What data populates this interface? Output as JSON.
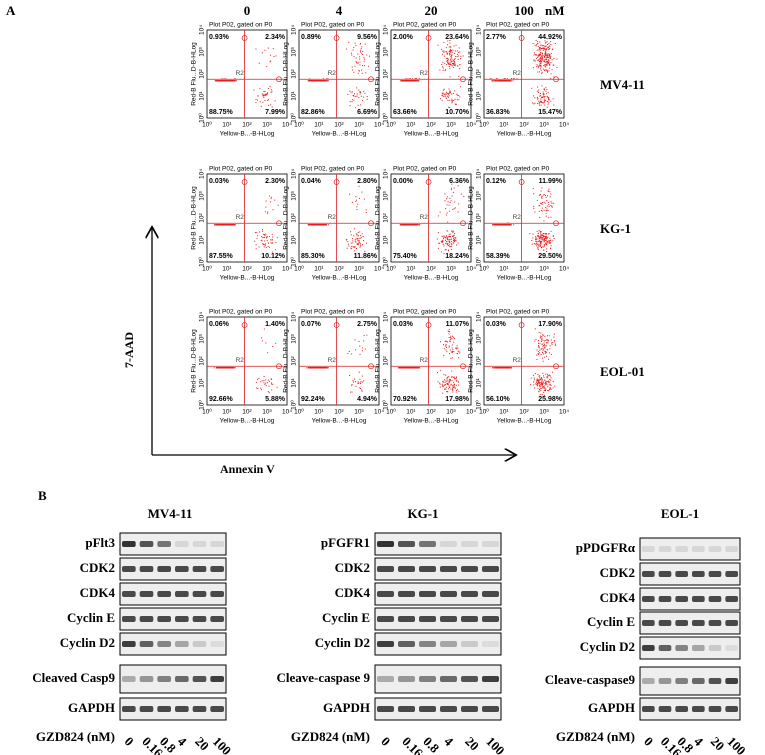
{
  "panel_a": {
    "label": "A",
    "concentrations": [
      "0",
      "4",
      "20",
      "100"
    ],
    "unit": "nM",
    "plot_title": "Plot P02, gated on P0",
    "y_axis": "Red-B Flu...D-B-HLog",
    "x_axis": "Yellow-B...-B-HLog",
    "gate": "R2",
    "ticks": [
      "10⁰",
      "10¹",
      "10²",
      "10³",
      "10⁴"
    ],
    "y_label": "7-AAD",
    "x_label": "Annexin V",
    "rows": [
      {
        "name": "MV4-11",
        "plots": [
          [
            "0.93%",
            "2.34%",
            "88.75%",
            "7.99%"
          ],
          [
            "0.89%",
            "9.56%",
            "82.86%",
            "6.69%"
          ],
          [
            "2.00%",
            "23.64%",
            "63.66%",
            "10.70%"
          ],
          [
            "2.77%",
            "44.92%",
            "36.83%",
            "15.47%"
          ]
        ]
      },
      {
        "name": "KG-1",
        "plots": [
          [
            "0.03%",
            "2.30%",
            "87.55%",
            "10.12%"
          ],
          [
            "0.04%",
            "2.80%",
            "85.30%",
            "11.86%"
          ],
          [
            "0.00%",
            "6.36%",
            "75.40%",
            "18.24%"
          ],
          [
            "0.12%",
            "11.99%",
            "58.39%",
            "29.50%"
          ]
        ]
      },
      {
        "name": "EOL-01",
        "plots": [
          [
            "0.06%",
            "1.40%",
            "92.66%",
            "5.88%"
          ],
          [
            "0.07%",
            "2.75%",
            "92.24%",
            "4.94%"
          ],
          [
            "0.03%",
            "11.07%",
            "70.92%",
            "17.98%"
          ],
          [
            "0.03%",
            "17.90%",
            "56.10%",
            "25.98%"
          ]
        ]
      }
    ]
  },
  "panel_b": {
    "label": "B",
    "dose_label": "GZD824 (nM)",
    "doses": [
      "0",
      "0.16",
      "0.8",
      "4",
      "20",
      "100"
    ],
    "blots": [
      {
        "cell_line": "MV4-11",
        "proteins": [
          "pFlt3",
          "CDK2",
          "CDK4",
          "Cyclin E",
          "Cyclin D2",
          "Cleaved Casp9",
          "GAPDH"
        ]
      },
      {
        "cell_line": "KG-1",
        "proteins": [
          "pFGFR1",
          "CDK2",
          "CDK4",
          "Cyclin E",
          "Cyclin D2",
          "Cleave-caspase 9",
          "GAPDH"
        ]
      },
      {
        "cell_line": "EOL-1",
        "proteins": [
          "pPDGFRα",
          "CDK2",
          "CDK4",
          "Cyclin E",
          "Cyclin D2",
          "Cleave-caspase9",
          "GAPDH"
        ]
      }
    ]
  }
}
